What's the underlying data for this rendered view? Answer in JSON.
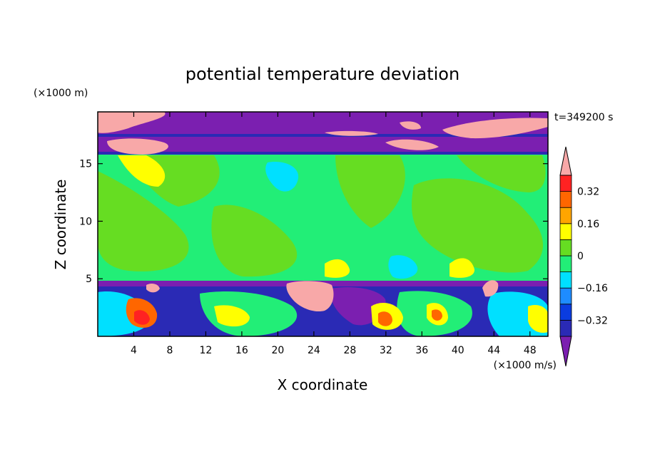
{
  "chart_data": {
    "type": "heatmap",
    "title": "potential temperature deviation",
    "xlabel": "X coordinate",
    "ylabel": "Z coordinate",
    "x_unit": "(×1000 m/s)",
    "y_unit": "(×1000 m)",
    "time_label": "t=349200 s",
    "xlim": [
      0,
      50
    ],
    "ylim": [
      0,
      19.5
    ],
    "x_ticks": [
      4,
      8,
      12,
      16,
      20,
      24,
      28,
      32,
      36,
      40,
      44,
      48
    ],
    "y_ticks": [
      5,
      10,
      15
    ],
    "colorbar": {
      "levels": [
        -0.4,
        -0.32,
        -0.24,
        -0.16,
        -0.08,
        0,
        0.08,
        0.16,
        0.24,
        0.32,
        0.4
      ],
      "labels": [
        "0.32",
        "0.16",
        "0",
        "-0.16",
        "-0.32"
      ],
      "colors": [
        "#7b1fb0",
        "#2a2ab5",
        "#0a3ce0",
        "#1e8cff",
        "#00e0ff",
        "#22ee77",
        "#66dd22",
        "#ffff00",
        "#ffa500",
        "#ff6600",
        "#ff2222",
        "#f8a8a8"
      ]
    },
    "regions": {
      "stratosphere_band": {
        "z_from": 16.2,
        "z_to": 19.5,
        "value": -0.45
      },
      "upper_troposphere": {
        "z_from": 5.0,
        "z_to": 16.2,
        "value": 0.02
      },
      "boundary_layer": {
        "z_from": 0,
        "z_to": 5.0,
        "value": "mixed"
      }
    }
  }
}
